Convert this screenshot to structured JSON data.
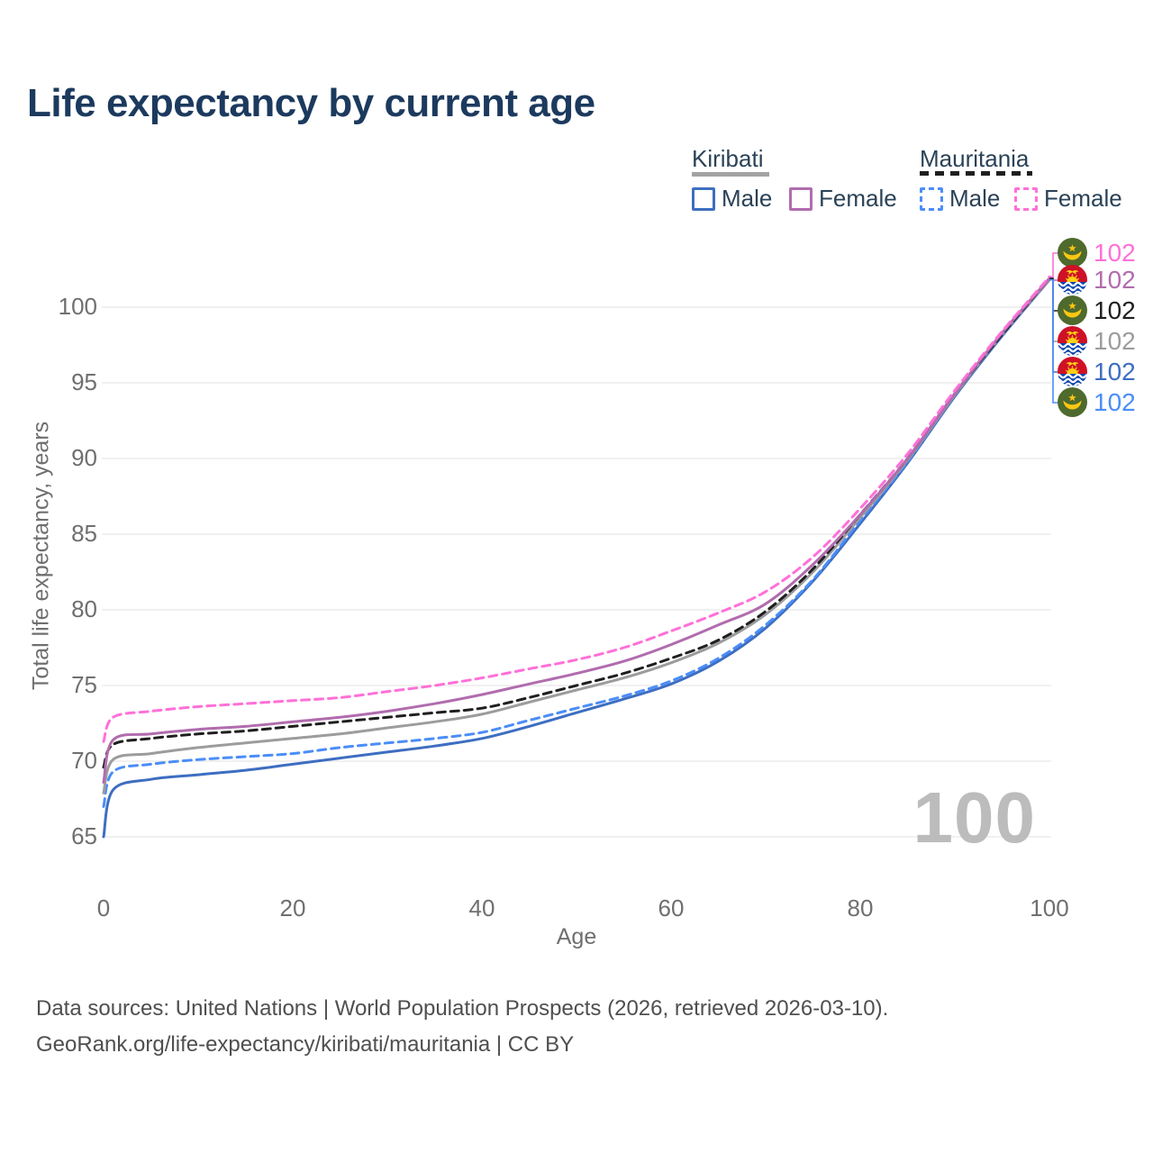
{
  "title": "Life expectancy by current age",
  "legend": {
    "kiribati_label": "Kiribati",
    "mauritania_label": "Mauritania",
    "kiribati_male": "Male",
    "kiribati_female": "Female",
    "mauritania_male": "Male",
    "mauritania_female": "Female"
  },
  "colors": {
    "title_text": "#1c3a5e",
    "legend_text": "#2b4257",
    "axis_text": "#6f6f6f",
    "gridline": "#e8e8e8",
    "watermark": "#bcbcbc",
    "footer_text": "#4f4f4f",
    "kiribati_male": "#3d6ec1",
    "kiribati_female": "#b16cae",
    "kiribati_both": "#9c9c9c",
    "mauritania_male": "#4b8df8",
    "mauritania_female": "#ff70d9",
    "mauritania_both": "#1f1f1f"
  },
  "chart_data": {
    "type": "line",
    "title": "Life expectancy by current age",
    "xlabel": "Age",
    "ylabel": "Total life expectancy, years",
    "xlim": [
      0,
      100
    ],
    "ylim": [
      63.5,
      103.5
    ],
    "x_ticks": [
      0,
      20,
      40,
      60,
      80,
      100
    ],
    "y_ticks": [
      65,
      70,
      75,
      80,
      85,
      90,
      95,
      100
    ],
    "grid": "horizontal",
    "legend_position": "top-right",
    "x": [
      0,
      1,
      5,
      10,
      15,
      20,
      25,
      30,
      35,
      40,
      45,
      50,
      55,
      60,
      65,
      70,
      75,
      80,
      85,
      90,
      95,
      100
    ],
    "series": [
      {
        "id": "kiribati-male",
        "name": "Kiribati Male",
        "style": "solid",
        "color": "#3d6ec1",
        "values": [
          65.0,
          68.1,
          68.8,
          69.1,
          69.4,
          69.8,
          70.2,
          70.6,
          71.0,
          71.5,
          72.3,
          73.2,
          74.1,
          75.1,
          76.6,
          78.8,
          81.9,
          85.7,
          89.7,
          94.1,
          98.1,
          101.8
        ]
      },
      {
        "id": "mauritania-male",
        "name": "Mauritania Male",
        "style": "dashed",
        "color": "#4b8df8",
        "values": [
          67.0,
          69.3,
          69.8,
          70.1,
          70.3,
          70.5,
          70.9,
          71.2,
          71.5,
          71.9,
          72.7,
          73.5,
          74.3,
          75.3,
          76.8,
          79.0,
          82.0,
          85.9,
          89.8,
          94.2,
          98.2,
          101.8
        ]
      },
      {
        "id": "kiribati-both",
        "name": "Kiribati",
        "style": "solid",
        "color": "#9c9c9c",
        "values": [
          67.9,
          70.1,
          70.5,
          70.9,
          71.2,
          71.5,
          71.8,
          72.2,
          72.6,
          73.1,
          73.9,
          74.7,
          75.5,
          76.5,
          77.8,
          79.7,
          82.5,
          86.1,
          89.9,
          94.2,
          98.2,
          101.8
        ]
      },
      {
        "id": "mauritania-both",
        "name": "Mauritania",
        "style": "dashed",
        "color": "#1f1f1f",
        "values": [
          69.6,
          71.1,
          71.5,
          71.8,
          72.0,
          72.3,
          72.6,
          72.9,
          73.2,
          73.5,
          74.2,
          75.0,
          75.8,
          76.8,
          78.0,
          79.9,
          82.7,
          86.3,
          90.0,
          94.3,
          98.2,
          101.9
        ]
      },
      {
        "id": "kiribati-female",
        "name": "Kiribati Female",
        "style": "solid",
        "color": "#b16cae",
        "values": [
          68.6,
          71.4,
          71.8,
          72.1,
          72.3,
          72.6,
          72.9,
          73.3,
          73.8,
          74.4,
          75.1,
          75.8,
          76.6,
          77.7,
          79.0,
          80.4,
          83.0,
          86.3,
          90.0,
          94.3,
          98.3,
          101.9
        ]
      },
      {
        "id": "mauritania-female",
        "name": "Mauritania Female",
        "style": "dashed",
        "color": "#ff70d9",
        "values": [
          71.3,
          72.9,
          73.3,
          73.6,
          73.8,
          74.0,
          74.2,
          74.6,
          75.0,
          75.5,
          76.1,
          76.7,
          77.5,
          78.6,
          79.8,
          81.2,
          83.5,
          86.7,
          90.3,
          94.5,
          98.4,
          102.0
        ]
      }
    ],
    "end_labels": [
      {
        "series_id": "mauritania-female",
        "flag": "mauritania",
        "value": "102",
        "end_value": 102.0,
        "color": "#ff70d9",
        "y": 281
      },
      {
        "series_id": "kiribati-female",
        "flag": "kiribati",
        "value": "102",
        "end_value": 101.9,
        "color": "#b16cae",
        "y": 311
      },
      {
        "series_id": "mauritania-both",
        "flag": "mauritania",
        "value": "102",
        "end_value": 101.9,
        "color": "#1f1f1f",
        "y": 345
      },
      {
        "series_id": "kiribati-both",
        "flag": "kiribati",
        "value": "102",
        "end_value": 101.8,
        "color": "#9c9c9c",
        "y": 379
      },
      {
        "series_id": "kiribati-male",
        "flag": "kiribati",
        "value": "102",
        "end_value": 101.8,
        "color": "#3d6ec1",
        "y": 413
      },
      {
        "series_id": "mauritania-male",
        "flag": "mauritania",
        "value": "102",
        "end_value": 101.8,
        "color": "#4b8df8",
        "y": 447
      }
    ],
    "watermark": "100"
  },
  "footer": {
    "line1": "Data sources: United Nations | World Population Prospects (2026, retrieved 2026-03-10).",
    "line2": "GeoRank.org/life-expectancy/kiribati/mauritania | CC BY"
  }
}
